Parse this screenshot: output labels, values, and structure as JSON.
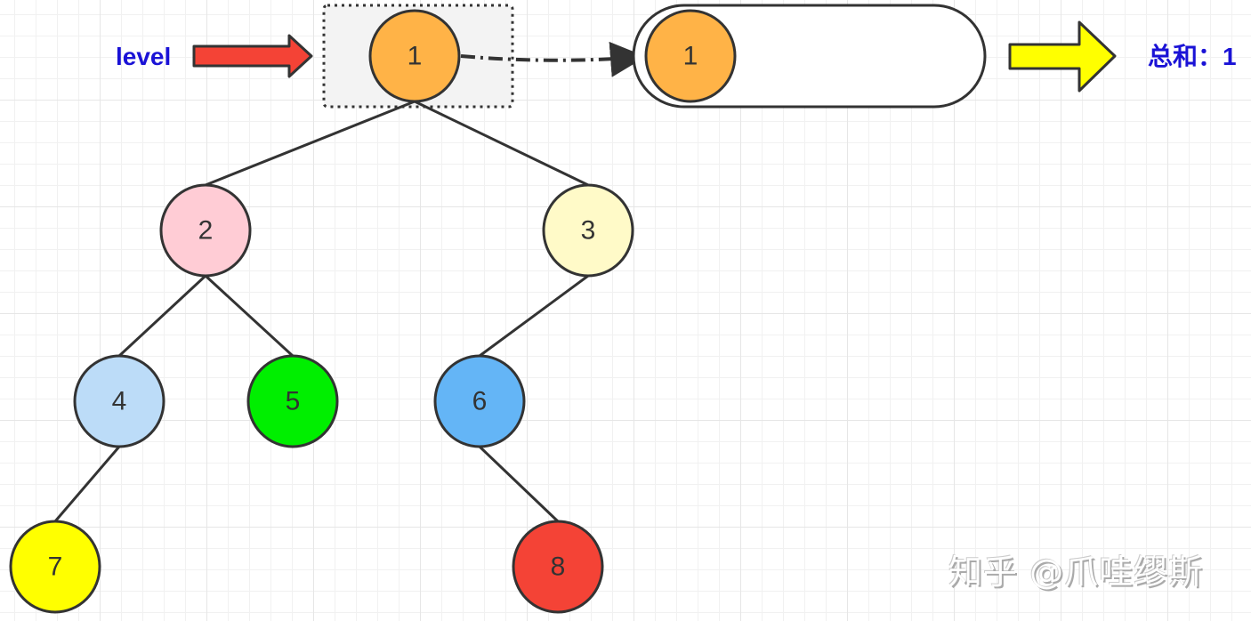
{
  "level_label": "level",
  "sum_label": "总和：1",
  "watermark": "知乎 @爪哇缪斯",
  "nodes": [
    {
      "id": "1",
      "color": "#ffb347"
    },
    {
      "id": "2",
      "color": "#ffccd5"
    },
    {
      "id": "3",
      "color": "#fffac8"
    },
    {
      "id": "4",
      "color": "#bcdcf8"
    },
    {
      "id": "5",
      "color": "#00ef00"
    },
    {
      "id": "6",
      "color": "#64b5f6"
    },
    {
      "id": "7",
      "color": "#ffff00"
    },
    {
      "id": "8",
      "color": "#f44336"
    }
  ],
  "edges": [
    [
      "1",
      "2"
    ],
    [
      "1",
      "3"
    ],
    [
      "2",
      "4"
    ],
    [
      "2",
      "5"
    ],
    [
      "3",
      "6"
    ],
    [
      "4",
      "7"
    ],
    [
      "6",
      "8"
    ]
  ],
  "queue": [
    {
      "id": "1",
      "color": "#ffb347"
    }
  ],
  "colors": {
    "level_arrow": "#f44336",
    "sum_arrow": "#ffff00",
    "label": "#1a12d6",
    "highlight_box": "#f3f3f3"
  }
}
